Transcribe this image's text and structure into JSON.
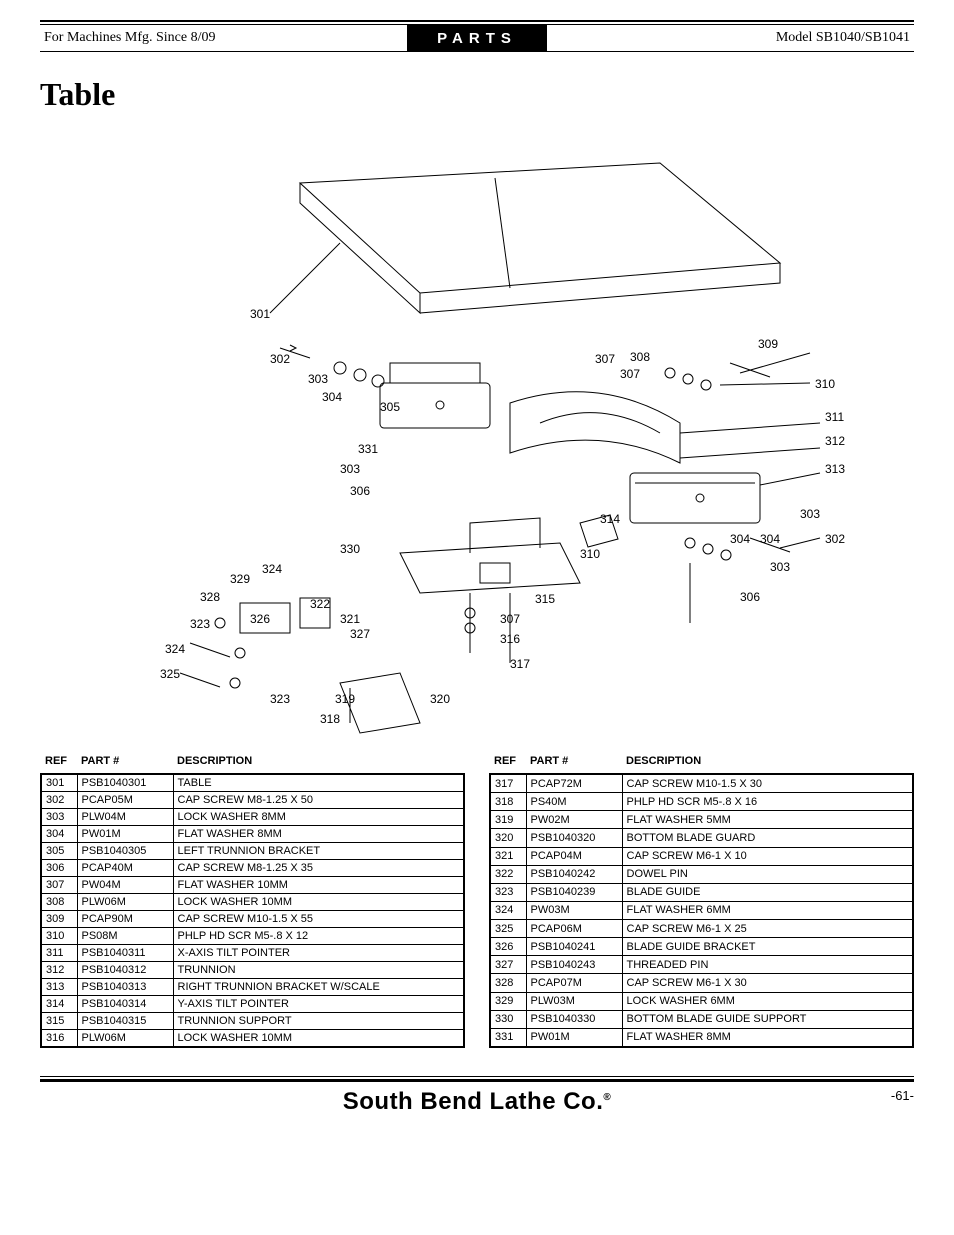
{
  "header": {
    "left": "For Machines Mfg. Since 8/09",
    "center": "PARTS",
    "right": "Model SB1040/SB1041"
  },
  "section_title": "Table",
  "diagram": {
    "callouts": [
      "301",
      "302",
      "303",
      "304",
      "305",
      "306",
      "307",
      "307",
      "308",
      "309",
      "310",
      "311",
      "312",
      "313",
      "303",
      "302",
      "304",
      "304",
      "303",
      "306",
      "310",
      "314",
      "315",
      "316",
      "317",
      "307",
      "320",
      "319",
      "318",
      "321",
      "327",
      "322",
      "326",
      "323",
      "324",
      "325",
      "323",
      "328",
      "329",
      "324",
      "330",
      "331"
    ]
  },
  "columns": [
    "REF",
    "PART #",
    "DESCRIPTION"
  ],
  "left_rows": [
    [
      "301",
      "PSB1040301",
      "TABLE"
    ],
    [
      "302",
      "PCAP05M",
      "CAP SCREW M8-1.25 X 50"
    ],
    [
      "303",
      "PLW04M",
      "LOCK WASHER 8MM"
    ],
    [
      "304",
      "PW01M",
      "FLAT WASHER 8MM"
    ],
    [
      "305",
      "PSB1040305",
      "LEFT TRUNNION BRACKET"
    ],
    [
      "306",
      "PCAP40M",
      "CAP SCREW M8-1.25 X 35"
    ],
    [
      "307",
      "PW04M",
      "FLAT WASHER 10MM"
    ],
    [
      "308",
      "PLW06M",
      "LOCK WASHER 10MM"
    ],
    [
      "309",
      "PCAP90M",
      "CAP SCREW M10-1.5 X 55"
    ],
    [
      "310",
      "PS08M",
      "PHLP HD SCR M5-.8 X 12"
    ],
    [
      "311",
      "PSB1040311",
      "X-AXIS TILT POINTER"
    ],
    [
      "312",
      "PSB1040312",
      "TRUNNION"
    ],
    [
      "313",
      "PSB1040313",
      "RIGHT TRUNNION BRACKET W/SCALE"
    ],
    [
      "314",
      "PSB1040314",
      "Y-AXIS TILT POINTER"
    ],
    [
      "315",
      "PSB1040315",
      "TRUNNION SUPPORT"
    ],
    [
      "316",
      "PLW06M",
      "LOCK WASHER 10MM"
    ]
  ],
  "right_rows": [
    [
      "317",
      "PCAP72M",
      "CAP SCREW M10-1.5 X 30"
    ],
    [
      "318",
      "PS40M",
      "PHLP HD SCR M5-.8 X 16"
    ],
    [
      "319",
      "PW02M",
      "FLAT WASHER 5MM"
    ],
    [
      "320",
      "PSB1040320",
      "BOTTOM BLADE GUARD"
    ],
    [
      "321",
      "PCAP04M",
      "CAP SCREW M6-1 X 10"
    ],
    [
      "322",
      "PSB1040242",
      "DOWEL PIN"
    ],
    [
      "323",
      "PSB1040239",
      "BLADE GUIDE"
    ],
    [
      "324",
      "PW03M",
      "FLAT WASHER 6MM"
    ],
    [
      "325",
      "PCAP06M",
      "CAP SCREW M6-1 X 25"
    ],
    [
      "326",
      "PSB1040241",
      "BLADE GUIDE BRACKET"
    ],
    [
      "327",
      "PSB1040243",
      "THREADED PIN"
    ],
    [
      "328",
      "PCAP07M",
      "CAP SCREW M6-1 X 30"
    ],
    [
      "329",
      "PLW03M",
      "LOCK WASHER 6MM"
    ],
    [
      "330",
      "PSB1040330",
      "BOTTOM BLADE GUIDE SUPPORT"
    ],
    [
      "331",
      "PW01M",
      "FLAT WASHER 8MM"
    ]
  ],
  "footer": {
    "brand": "South Bend Lathe Co.",
    "page": "-61-"
  },
  "style": {
    "font_table": 11,
    "font_callout": 12,
    "line_color": "#000000",
    "bg": "#ffffff"
  }
}
